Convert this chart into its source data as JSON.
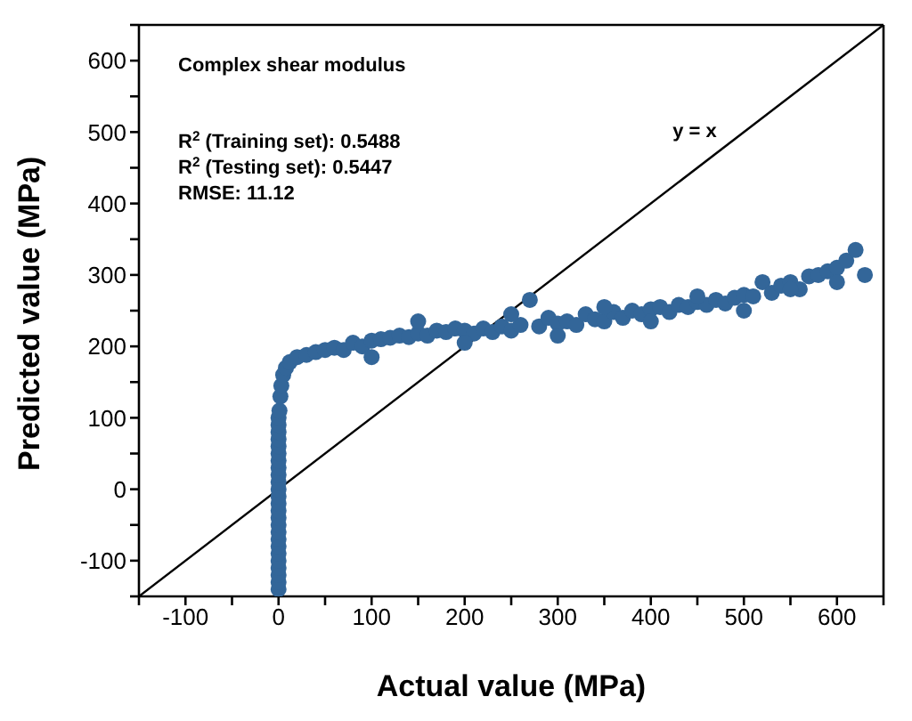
{
  "chart_data": {
    "type": "scatter",
    "title": "Complex shear modulus",
    "xlabel": "Actual value (MPa)",
    "ylabel": "Predicted value (MPa)",
    "annotations": [
      "R$^{2}$ (Training set): 0.5488",
      "R$^{2}$ (Testing set): 0.5447",
      "RMSE: 11.12",
      "y = x"
    ],
    "xlim": [
      -150,
      650
    ],
    "ylim": [
      -150,
      650
    ],
    "xticks": [
      {
        "value": -150,
        "label": null
      },
      -100,
      {
        "value": -50,
        "label": null
      },
      0,
      {
        "value": 50,
        "label": null
      },
      100,
      {
        "value": 150,
        "label": null
      },
      200,
      {
        "value": 250,
        "label": null
      },
      300,
      {
        "value": 350,
        "label": null
      },
      400,
      {
        "value": 450,
        "label": null
      },
      500,
      {
        "value": 550,
        "label": null
      },
      600,
      {
        "value": 650,
        "label": null
      }
    ],
    "yticks": [
      {
        "value": -150,
        "label": null
      },
      -100,
      {
        "value": -50,
        "label": null
      },
      0,
      {
        "value": 50,
        "label": null
      },
      100,
      {
        "value": 150,
        "label": null
      },
      200,
      {
        "value": 250,
        "label": null
      },
      300,
      {
        "value": 350,
        "label": null
      },
      400,
      {
        "value": 450,
        "label": null
      },
      500,
      {
        "value": 550,
        "label": null
      },
      600,
      {
        "value": 650,
        "label": null
      }
    ],
    "series": [
      {
        "marker": "circle",
        "color": "#336699",
        "x": [
          0,
          0,
          0,
          0,
          0,
          0,
          0,
          0,
          0,
          0,
          0,
          0,
          0,
          0,
          0,
          0,
          0,
          0,
          0,
          0,
          0,
          0,
          0,
          0,
          0,
          1,
          2,
          3,
          5,
          8,
          12,
          20,
          30,
          40,
          50,
          60,
          70,
          80,
          90,
          100,
          110,
          120,
          130,
          140,
          150,
          160,
          170,
          180,
          190,
          200,
          210,
          220,
          230,
          240,
          250,
          260,
          270,
          280,
          290,
          300,
          310,
          320,
          330,
          340,
          350,
          360,
          370,
          380,
          390,
          400,
          410,
          420,
          430,
          440,
          450,
          460,
          470,
          480,
          490,
          500,
          510,
          520,
          530,
          540,
          550,
          560,
          570,
          580,
          590,
          600,
          610,
          620,
          630,
          100,
          200,
          300,
          400,
          500,
          600,
          150,
          250,
          350,
          450,
          550
        ],
        "values": [
          -140,
          -130,
          -120,
          -110,
          -100,
          -90,
          -80,
          -70,
          -60,
          -50,
          -40,
          -30,
          -20,
          -10,
          0,
          10,
          20,
          30,
          40,
          50,
          60,
          70,
          80,
          90,
          100,
          110,
          130,
          145,
          160,
          170,
          178,
          185,
          188,
          192,
          195,
          198,
          195,
          205,
          200,
          208,
          210,
          212,
          215,
          213,
          218,
          215,
          222,
          220,
          225,
          222,
          218,
          225,
          220,
          228,
          222,
          230,
          265,
          228,
          240,
          232,
          235,
          230,
          245,
          238,
          235,
          248,
          240,
          250,
          245,
          252,
          255,
          248,
          258,
          255,
          262,
          258,
          265,
          260,
          268,
          272,
          270,
          290,
          275,
          285,
          290,
          280,
          298,
          300,
          305,
          310,
          320,
          335,
          300,
          185,
          205,
          215,
          235,
          250,
          290,
          235,
          245,
          255,
          270,
          280
        ]
      },
      {
        "type": "line",
        "marker": "none",
        "line_style": "solid",
        "color": "#000000",
        "x": [
          -150,
          650
        ],
        "values": [
          -150,
          650
        ]
      }
    ]
  }
}
